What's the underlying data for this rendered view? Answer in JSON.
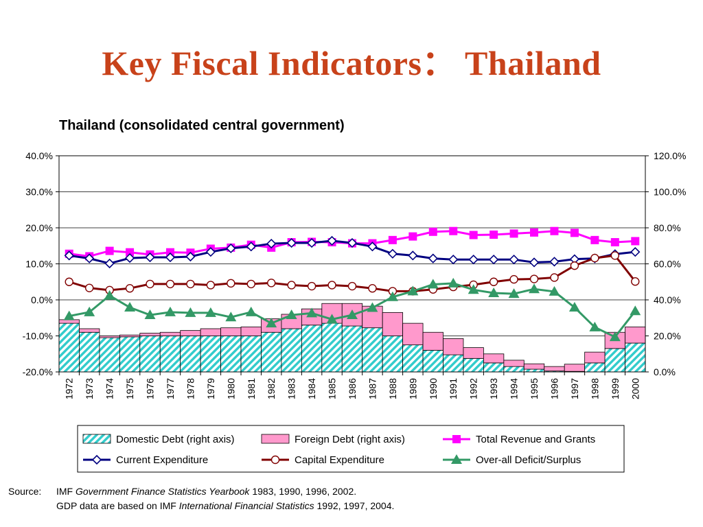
{
  "slide": {
    "title": "Key Fiscal Indicators： Thailand"
  },
  "source": {
    "label": "Source:",
    "line1_a": "IMF ",
    "line1_i": "Government Finance Statistics Yearbook",
    "line1_b": " 1983, 1990, 1996, 2002.",
    "line2_a": "GDP data are based on IMF ",
    "line2_i": "International Financial Statistics",
    "line2_b": " 1992, 1997, 2004."
  },
  "colors": {
    "title": "#c8421a",
    "domestic_debt": "#33cccc",
    "foreign_debt": "#ff99cc",
    "total_revenue": "#ff00ff",
    "current_expenditure": "#000080",
    "capital_expenditure": "#800000",
    "deficit_surplus": "#339966"
  },
  "chart_data": {
    "type": "bar+line",
    "title": "Thailand (consolidated central government)",
    "categories": [
      "1972",
      "1973",
      "1974",
      "1975",
      "1976",
      "1977",
      "1978",
      "1979",
      "1980",
      "1981",
      "1982",
      "1983",
      "1984",
      "1985",
      "1986",
      "1987",
      "1988",
      "1989",
      "1990",
      "1991",
      "1992",
      "1993",
      "1994",
      "1995",
      "1996",
      "1997",
      "1998",
      "1999",
      "2000"
    ],
    "left_axis": {
      "ylim": [
        -20,
        40
      ],
      "ticks": [
        "40.0%",
        "30.0%",
        "20.0%",
        "10.0%",
        "0.0%",
        "-10.0%",
        "-20.0%"
      ]
    },
    "right_axis": {
      "ylim": [
        0,
        120
      ],
      "ticks": [
        "120.0%",
        "100.0%",
        "80.0%",
        "60.0%",
        "40.0%",
        "20.0%",
        "0.0%"
      ]
    },
    "bars": [
      {
        "name": "Domestic Debt (right axis)",
        "axis": "right",
        "stack": true,
        "marker": "hatch",
        "values": [
          27,
          22,
          19,
          19.5,
          20,
          20,
          20,
          20,
          20,
          20,
          22,
          24,
          26,
          27,
          25.5,
          24.5,
          20,
          15,
          12,
          9.5,
          7.5,
          5,
          3,
          1.5,
          0.5,
          0.3,
          5,
          13,
          16
        ]
      },
      {
        "name": "Foreign Debt (right axis)",
        "axis": "right",
        "stack": true,
        "marker": "solid",
        "values": [
          2,
          2,
          1,
          1,
          1.5,
          2,
          3,
          4,
          4.5,
          5,
          7.5,
          8,
          9,
          11,
          12.5,
          12,
          13,
          12,
          10,
          9,
          6,
          5,
          3.5,
          3,
          2.5,
          4,
          6,
          9,
          9
        ]
      }
    ],
    "series": [
      {
        "name": "Total Revenue and Grants",
        "axis": "left",
        "marker": "square",
        "values": [
          12.8,
          12.1,
          13.6,
          13.2,
          12.6,
          13.2,
          13.1,
          14.2,
          14.5,
          15.3,
          14.5,
          16.0,
          16.1,
          16.0,
          15.7,
          15.7,
          16.6,
          17.6,
          18.9,
          19.1,
          18.0,
          18.1,
          18.4,
          18.7,
          19.1,
          18.6,
          16.6,
          16.0,
          16.3
        ]
      },
      {
        "name": "Current Expenditure",
        "axis": "left",
        "marker": "diamond",
        "values": [
          12.3,
          11.5,
          10.1,
          11.6,
          11.8,
          11.8,
          12.0,
          13.3,
          14.3,
          14.8,
          15.6,
          15.8,
          15.8,
          16.4,
          15.8,
          14.8,
          12.8,
          12.3,
          11.5,
          11.2,
          11.2,
          11.2,
          11.2,
          10.4,
          10.6,
          11.3,
          11.5,
          12.7,
          13.3
        ]
      },
      {
        "name": "Capital Expenditure",
        "axis": "left",
        "marker": "circle",
        "values": [
          5.0,
          3.3,
          2.7,
          3.2,
          4.4,
          4.4,
          4.4,
          4.1,
          4.6,
          4.4,
          4.7,
          4.1,
          3.8,
          4.1,
          3.8,
          3.2,
          2.4,
          2.4,
          2.9,
          3.6,
          4.2,
          5.0,
          5.7,
          5.8,
          6.2,
          9.5,
          11.6,
          12.3,
          5.1
        ]
      },
      {
        "name": "Over-all Deficit/Surplus",
        "axis": "left",
        "marker": "triangle",
        "values": [
          -4.5,
          -3.4,
          1.2,
          -2.1,
          -4.2,
          -3.4,
          -3.6,
          -3.6,
          -4.8,
          -3.4,
          -6.5,
          -4.2,
          -3.7,
          -5.4,
          -4.2,
          -2.2,
          0.8,
          2.4,
          4.3,
          4.6,
          2.8,
          1.9,
          1.7,
          3.0,
          2.3,
          -2.1,
          -7.6,
          -10.3,
          -3.1
        ]
      }
    ],
    "legend": {
      "position": "bottom",
      "items": [
        "Domestic Debt (right axis)",
        "Foreign Debt (right axis)",
        "Total Revenue and Grants",
        "Current Expenditure",
        "Capital Expenditure",
        "Over-all Deficit/Surplus"
      ]
    },
    "grid": true
  }
}
